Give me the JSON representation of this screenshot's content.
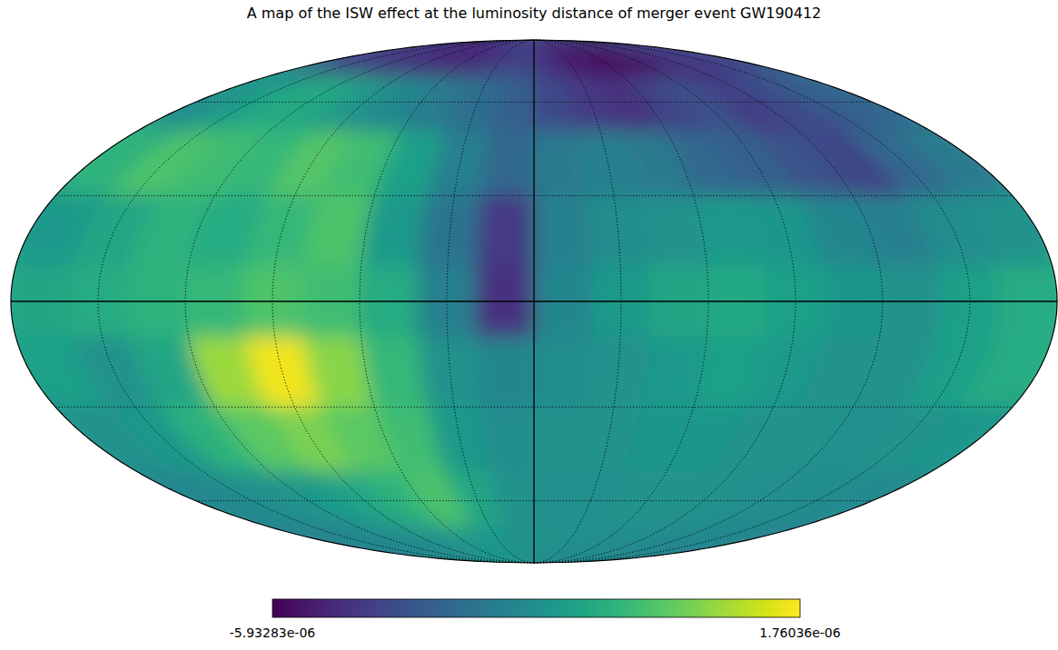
{
  "chart_data": {
    "type": "map",
    "title": "A map of the ISW effect at the luminosity distance of merger event GW190412",
    "color": "viridis",
    "xlim": [
      180,
      -180
    ],
    "ylim": [
      -90,
      90
    ],
    "xticks": [
      150,
      120,
      90,
      60,
      30,
      0,
      -30,
      -60,
      -90,
      -120,
      -150
    ],
    "yticks": [
      60,
      30,
      0,
      -30,
      -60
    ],
    "grid": true,
    "tick_labels": false,
    "cells": [
      [
        -4e-06,
        -4.3e-06,
        -4.6e-06,
        -4.8e-06,
        -5e-06,
        -5.2e-06,
        -5e-06,
        -4.6e-06,
        -4.4e-06,
        -4.8e-06,
        -5.3e-06,
        -5.6e-06,
        -5.8e-06,
        -5.6e-06,
        -5.2e-06,
        -4.8e-06,
        -4.5e-06,
        -4.2e-06
      ],
      [
        -2.2e-06,
        -1.6e-06,
        -1.2e-06,
        -1.4e-06,
        -2e-06,
        -2.4e-06,
        -2.8e-06,
        -3.2e-06,
        -3.6e-06,
        -4.2e-06,
        -4.6e-06,
        -4.8e-06,
        -4.4e-06,
        -4e-06,
        -4.6e-06,
        -4.2e-06,
        -3.8e-06,
        -3.4e-06
      ],
      [
        -1e-06,
        -4e-07,
        -6e-07,
        -8e-07,
        -3e-07,
        -6e-07,
        -1.6e-06,
        -2.6e-06,
        -3.4e-06,
        -2.8e-06,
        -2.6e-06,
        -2.8e-06,
        -3.4e-06,
        -3.6e-06,
        -4e-06,
        -4.4e-06,
        -3.4e-06,
        -2.8e-06
      ],
      [
        -1.8e-06,
        -1.4e-06,
        -1e-06,
        -1.2e-06,
        -8e-07,
        -4e-07,
        -1.8e-06,
        -3e-06,
        -4.6e-06,
        -2.6e-06,
        -2.2e-06,
        -2e-06,
        -1.8e-06,
        -1.9e-06,
        -2.4e-06,
        -2.6e-06,
        -2.2e-06,
        -2e-06
      ],
      [
        -1.4e-06,
        -1.2e-06,
        -1e-06,
        -8e-07,
        -4e-07,
        -6e-07,
        -1.2e-06,
        -2.6e-06,
        -4.8e-06,
        -2.4e-06,
        -1.8e-06,
        -1.4e-06,
        -1.3e-06,
        -1.6e-06,
        -1.9e-06,
        -2e-06,
        -1.6e-06,
        -1.2e-06
      ],
      [
        -1.6e-06,
        -2e-06,
        -1.4e-06,
        6e-07,
        1.6e-06,
        4e-07,
        -8e-07,
        -2e-06,
        -2.4e-06,
        -2.2e-06,
        -2e-06,
        -1.8e-06,
        -1.6e-06,
        -1.8e-06,
        -2e-06,
        -2e-06,
        -1.6e-06,
        -1.2e-06
      ],
      [
        -2e-06,
        -1.8e-06,
        -1e-06,
        -2e-07,
        2e-07,
        -2e-07,
        -6e-07,
        -1.8e-06,
        -2.2e-06,
        -2e-06,
        -2e-06,
        -1.9e-06,
        -1.9e-06,
        -2e-06,
        -2e-06,
        -2.1e-06,
        -2e-06,
        -1.9e-06
      ],
      [
        -2.4e-06,
        -2.2e-06,
        -2e-06,
        -1.8e-06,
        -1.4e-06,
        -1e-06,
        -4e-07,
        -1.4e-06,
        -2e-06,
        -2.1e-06,
        -2.1e-06,
        -2e-06,
        -2e-06,
        -2e-06,
        -2.1e-06,
        -2.2e-06,
        -2.2e-06,
        -2.3e-06
      ],
      [
        -2.6e-06,
        -2.5e-06,
        -2.4e-06,
        -2.3e-06,
        -2.2e-06,
        -2e-06,
        -1.8e-06,
        -1.9e-06,
        -2e-06,
        -2e-06,
        -2.1e-06,
        -2.1e-06,
        -2.2e-06,
        -2.2e-06,
        -2.3e-06,
        -2.3e-06,
        -2.4e-06,
        -2.5e-06
      ]
    ],
    "colorbar": {
      "range": [
        -5.93283e-06,
        1.76036e-06
      ],
      "ticks": [
        {
          "value": -5.93283e-06,
          "label": "-5.93283e-06"
        },
        {
          "value": 1.76036e-06,
          "label": "1.76036e-06"
        }
      ]
    }
  }
}
